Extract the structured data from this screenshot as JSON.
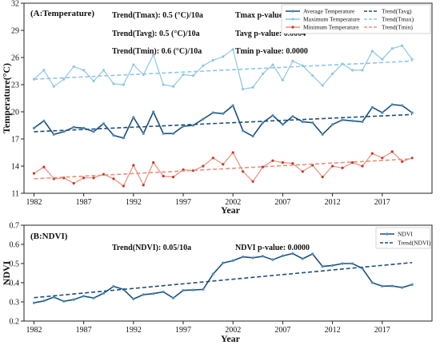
{
  "chart_data": [
    {
      "type": "line",
      "panel_label": "(A:Temperature)",
      "xlabel": "Year",
      "ylabel": "Temperature(°C)",
      "xlim": [
        1981,
        2022
      ],
      "ylim": [
        11,
        32
      ],
      "xticks": [
        1982,
        1987,
        1992,
        1997,
        2002,
        2007,
        2012,
        2017
      ],
      "yticks": [
        11,
        14,
        17,
        20,
        23,
        26,
        29,
        32
      ],
      "x": [
        1982,
        1983,
        1984,
        1985,
        1986,
        1987,
        1988,
        1989,
        1990,
        1991,
        1992,
        1993,
        1994,
        1995,
        1996,
        1997,
        1998,
        1999,
        2000,
        2001,
        2002,
        2003,
        2004,
        2005,
        2006,
        2007,
        2008,
        2009,
        2010,
        2011,
        2012,
        2013,
        2014,
        2015,
        2016,
        2017,
        2018,
        2019,
        2020
      ],
      "series": [
        {
          "name": "Average Temperature",
          "color": "#1f4e79",
          "marker": "#4a90c2",
          "values": [
            18.2,
            19.0,
            17.5,
            17.8,
            18.3,
            18.2,
            17.8,
            18.7,
            17.4,
            17.1,
            19.4,
            17.6,
            20.0,
            17.6,
            17.6,
            18.4,
            18.5,
            19.2,
            19.9,
            19.8,
            20.7,
            17.9,
            17.3,
            18.8,
            19.6,
            18.6,
            19.5,
            18.9,
            18.8,
            17.5,
            18.6,
            19.1,
            19.0,
            18.9,
            20.5,
            19.9,
            20.8,
            20.7,
            19.9
          ]
        },
        {
          "name": "Maximum Temperature",
          "color": "#8fc6e4",
          "marker": "#8fc6e4",
          "values": [
            23.6,
            24.6,
            22.8,
            23.6,
            25.0,
            24.6,
            23.4,
            24.6,
            23.1,
            23.0,
            25.2,
            24.1,
            26.3,
            23.0,
            22.8,
            24.1,
            24.0,
            25.1,
            25.7,
            26.1,
            26.9,
            22.5,
            22.7,
            24.2,
            25.2,
            23.5,
            25.6,
            25.1,
            24.0,
            22.9,
            24.2,
            25.3,
            24.6,
            24.6,
            26.7,
            25.8,
            27.0,
            27.3,
            25.8
          ]
        },
        {
          "name": "Minimum Temperature",
          "color": "#e8907a",
          "marker": "#c0392b",
          "values": [
            13.2,
            13.9,
            12.6,
            12.7,
            12.1,
            12.7,
            12.7,
            13.1,
            12.6,
            11.8,
            14.1,
            11.9,
            14.4,
            12.9,
            12.8,
            13.6,
            13.5,
            14.0,
            14.9,
            14.2,
            15.5,
            13.4,
            12.3,
            13.9,
            14.6,
            14.4,
            14.3,
            13.4,
            14.1,
            12.8,
            14.0,
            13.8,
            14.4,
            14.0,
            15.4,
            14.9,
            15.6,
            14.5,
            14.9
          ]
        },
        {
          "name": "Trend(Tavg)",
          "color": "#1f4e79",
          "dashed": true,
          "values_endpoints": [
            17.8,
            19.7
          ]
        },
        {
          "name": "Trend(Tmax)",
          "color": "#8fc6e4",
          "dashed": true,
          "values_endpoints": [
            23.6,
            25.6
          ]
        },
        {
          "name": "Trend(Tmin)",
          "color": "#e8907a",
          "dashed": true,
          "values_endpoints": [
            12.6,
            14.8
          ]
        }
      ],
      "annotations": {
        "trend_tmax": "Trend(Tmax): 0.5 (°C)/10a",
        "trend_tavg": "Trend(Tavg): 0.5 (°C)/10a",
        "trend_tmin": "Trend(Tmin): 0.6 (°C)/10a",
        "tmax_p": "Tmax p-value: 0.0044",
        "tavg_p": "Tavg p-value: 0.0004",
        "tmin_p": "Tmin p-value: 0.0000"
      },
      "legend_position": "top-right"
    },
    {
      "type": "line",
      "panel_label": "(B:NDVI)",
      "xlabel": "Year",
      "ylabel": "NDVI",
      "xlim": [
        1981,
        2022
      ],
      "ylim": [
        0.2,
        0.7
      ],
      "xticks": [
        1982,
        1987,
        1992,
        1997,
        2002,
        2007,
        2012,
        2017
      ],
      "yticks": [
        0.2,
        0.3,
        0.4,
        0.5,
        0.6,
        0.7
      ],
      "x": [
        1982,
        1983,
        1984,
        1985,
        1986,
        1987,
        1988,
        1989,
        1990,
        1991,
        1992,
        1993,
        1994,
        1995,
        1996,
        1997,
        1998,
        1999,
        2000,
        2001,
        2002,
        2003,
        2004,
        2005,
        2006,
        2007,
        2008,
        2009,
        2010,
        2011,
        2012,
        2013,
        2014,
        2015,
        2016,
        2017,
        2018,
        2019,
        2020
      ],
      "series": [
        {
          "name": "NDVI",
          "color": "#1f4e79",
          "marker": "#4a90c2",
          "values": [
            0.295,
            0.305,
            0.325,
            0.303,
            0.312,
            0.33,
            0.32,
            0.345,
            0.381,
            0.365,
            0.315,
            0.338,
            0.343,
            0.352,
            0.32,
            0.36,
            0.362,
            0.365,
            0.445,
            0.503,
            0.515,
            0.535,
            0.53,
            0.538,
            0.52,
            0.54,
            0.552,
            0.525,
            0.55,
            0.485,
            0.49,
            0.5,
            0.5,
            0.475,
            0.4,
            0.382,
            0.383,
            0.375,
            0.39
          ]
        },
        {
          "name": "Trend(NDVI)",
          "color": "#1f4e79",
          "dashed": true,
          "values_endpoints": [
            0.322,
            0.505
          ]
        }
      ],
      "annotations": {
        "trend_ndvi": "Trend(NDVI): 0.05/10a",
        "ndvi_p": "NDVI p-value: 0.0000"
      },
      "legend_position": "top-right"
    }
  ]
}
